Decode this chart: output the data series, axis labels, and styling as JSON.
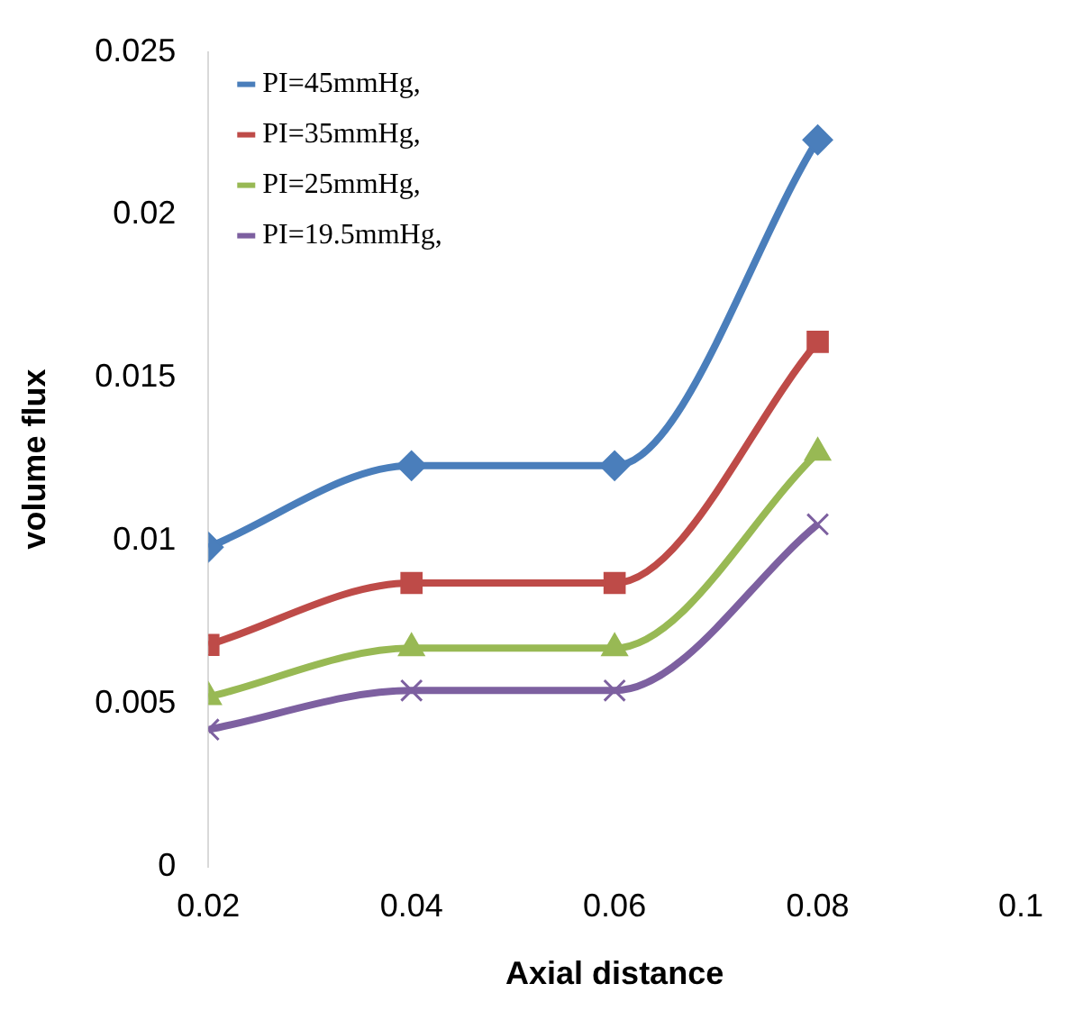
{
  "chart_data": {
    "type": "line",
    "xlabel": "Axial distance",
    "ylabel": "volume flux",
    "x": [
      0.02,
      0.04,
      0.06,
      0.08
    ],
    "xlim": [
      0.02,
      0.1
    ],
    "xticks": [
      0.02,
      0.04,
      0.06,
      0.08,
      0.1
    ],
    "ylim": [
      0,
      0.025
    ],
    "yticks": [
      0,
      0.005,
      0.01,
      0.015,
      0.02,
      0.025
    ],
    "grid": false,
    "legend": "top left",
    "series": [
      {
        "name": "PI=45mmHg,",
        "color": "#4a7ebb",
        "marker": "diamond",
        "values": [
          0.0098,
          0.0123,
          0.0123,
          0.0223
        ]
      },
      {
        "name": "PI=35mmHg,",
        "color": "#be4b48",
        "marker": "square",
        "values": [
          0.0068,
          0.0087,
          0.0087,
          0.0161
        ]
      },
      {
        "name": "PI=25mmHg,",
        "color": "#98b954",
        "marker": "triangle",
        "values": [
          0.0052,
          0.0067,
          0.0067,
          0.0127
        ]
      },
      {
        "name": "PI=19.5mmHg,",
        "color": "#7d60a0",
        "marker": "cross",
        "values": [
          0.0042,
          0.0054,
          0.0054,
          0.0105
        ]
      }
    ]
  }
}
